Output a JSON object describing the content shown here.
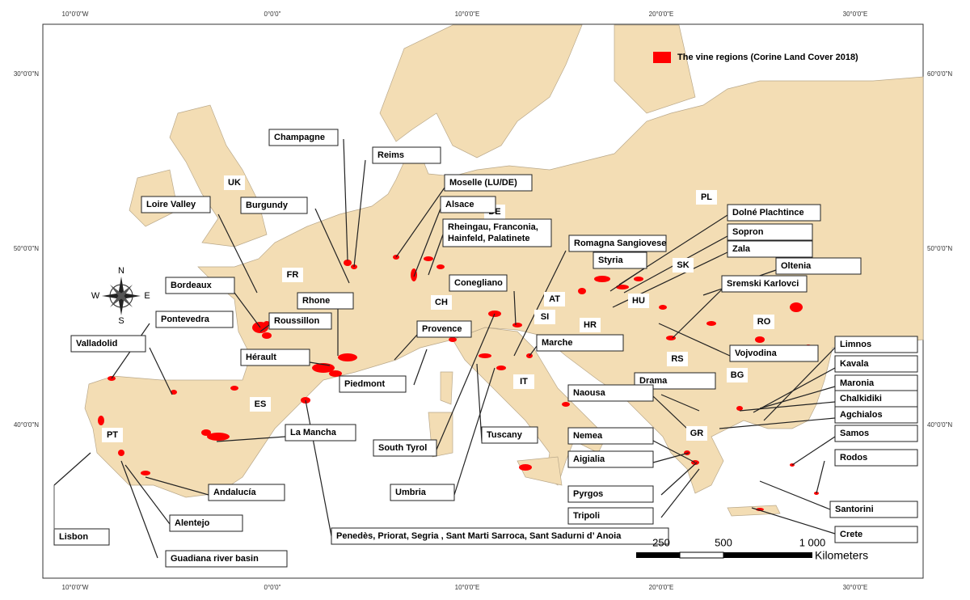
{
  "legend": "The vine regions (Corine Land Cover 2018)",
  "graticule": {
    "top": [
      "10°0'0\"W",
      "0°0'0\"",
      "10°0'0\"E",
      "20°0'0\"E",
      "30°0'0\"E"
    ],
    "bottom": [
      "10°0'0\"W",
      "0°0'0\"",
      "10°0'0\"E",
      "20°0'0\"E",
      "30°0'0\"E"
    ],
    "left": [
      "30°0'0\"N",
      "50°0'0\"N",
      "40°0'0\"N"
    ],
    "right": [
      "60°0'0\"N",
      "50°0'0\"N",
      "40°0'0\"N"
    ]
  },
  "compass": [
    "N",
    "E",
    "S",
    "W"
  ],
  "countries": [
    "UK",
    "FR",
    "DE",
    "PL",
    "CH",
    "AT",
    "SI",
    "HR",
    "HU",
    "SK",
    "RO",
    "RS",
    "BG",
    "IT",
    "ES",
    "PT",
    "GR"
  ],
  "regions": [
    [
      "Champagne"
    ],
    [
      "Reims"
    ],
    [
      "Moselle (LU/DE)"
    ],
    [
      "Alsace"
    ],
    [
      "Rheingau, Franconia,",
      "Hainfeld, Palatinete"
    ],
    [
      "Loire Valley"
    ],
    [
      "Burgundy"
    ],
    [
      "Bordeaux"
    ],
    [
      "Rhone"
    ],
    [
      "Roussillon"
    ],
    [
      "Pontevedra"
    ],
    [
      "Valladolid"
    ],
    [
      "Hérault"
    ],
    [
      "Piedmont"
    ],
    [
      "Provence"
    ],
    [
      "Conegliano"
    ],
    [
      "Romagna Sangiovese"
    ],
    [
      "Styria"
    ],
    [
      "Dolné Plachtince"
    ],
    [
      "Sopron"
    ],
    [
      "Zala"
    ],
    [
      "Oltenia"
    ],
    [
      "Sremski Karlovci"
    ],
    [
      "Vojvodina"
    ],
    [
      "Marche"
    ],
    [
      "Limnos"
    ],
    [
      "Kavala"
    ],
    [
      "Maronia"
    ],
    [
      "Chalkidiki"
    ],
    [
      "Agchialos"
    ],
    [
      "Samos"
    ],
    [
      "Rodos"
    ],
    [
      "Santorini"
    ],
    [
      "Crete"
    ],
    [
      "Drama"
    ],
    [
      "Naousa"
    ],
    [
      "Nemea"
    ],
    [
      "Aigialia"
    ],
    [
      "Pyrgos"
    ],
    [
      "Tripoli"
    ],
    [
      "Tuscany"
    ],
    [
      "South Tyrol"
    ],
    [
      "Umbria"
    ],
    [
      "La Mancha"
    ],
    [
      "Andalucía"
    ],
    [
      "Alentejo"
    ],
    [
      "Guadiana river basin"
    ],
    [
      "Lisbon"
    ],
    [
      "Penedès, Priorat, Segria , Sant Marti Sarroca, Sant Sadurni d’ Anoia"
    ]
  ],
  "scale": [
    "250",
    "500",
    "1 000",
    "Kilometers"
  ]
}
